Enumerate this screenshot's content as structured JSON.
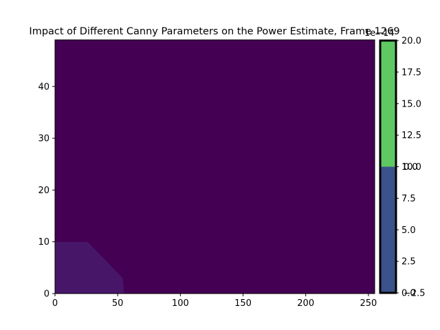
{
  "chart_data": {
    "type": "heatmap",
    "title": "Impact of Different Canny Parameters on the Power Estimate, Frame 1269",
    "xlabel": "",
    "ylabel": "",
    "xlim": [
      0,
      255
    ],
    "ylim": [
      0,
      49
    ],
    "x_ticks": [
      0,
      50,
      100,
      150,
      200,
      250
    ],
    "y_ticks": [
      0,
      10,
      20,
      30,
      40
    ],
    "background_color": "#440154",
    "region": {
      "color": "#471669",
      "boundary": [
        [
          0,
          0
        ],
        [
          0,
          10
        ],
        [
          26,
          10
        ],
        [
          30,
          9
        ],
        [
          34,
          8
        ],
        [
          38,
          7
        ],
        [
          42,
          6
        ],
        [
          46,
          5
        ],
        [
          50,
          4
        ],
        [
          54,
          3
        ],
        [
          55,
          0
        ]
      ]
    },
    "colorbar": {
      "multiplier_label": "1e−14",
      "segments": [
        {
          "from": 0,
          "to": 10,
          "color": "#3b528b"
        },
        {
          "from": 10,
          "to": 20,
          "color": "#5ec962"
        }
      ],
      "ticks": [
        {
          "value": 0,
          "label": "0.0"
        },
        {
          "value": 2.5,
          "label": "2.5"
        },
        {
          "value": 5,
          "label": "5.0"
        },
        {
          "value": 7.5,
          "label": "7.5"
        },
        {
          "value": 10,
          "label": "10.0"
        },
        {
          "value": 12.5,
          "label": "12.5"
        },
        {
          "value": 15,
          "label": "15.0"
        },
        {
          "value": 17.5,
          "label": "17.5"
        },
        {
          "value": 20,
          "label": "20.0"
        }
      ],
      "overlap_ticks": [
        {
          "value": 0,
          "label": "−2.5"
        },
        {
          "value": 10,
          "label": "0.0"
        }
      ]
    }
  }
}
